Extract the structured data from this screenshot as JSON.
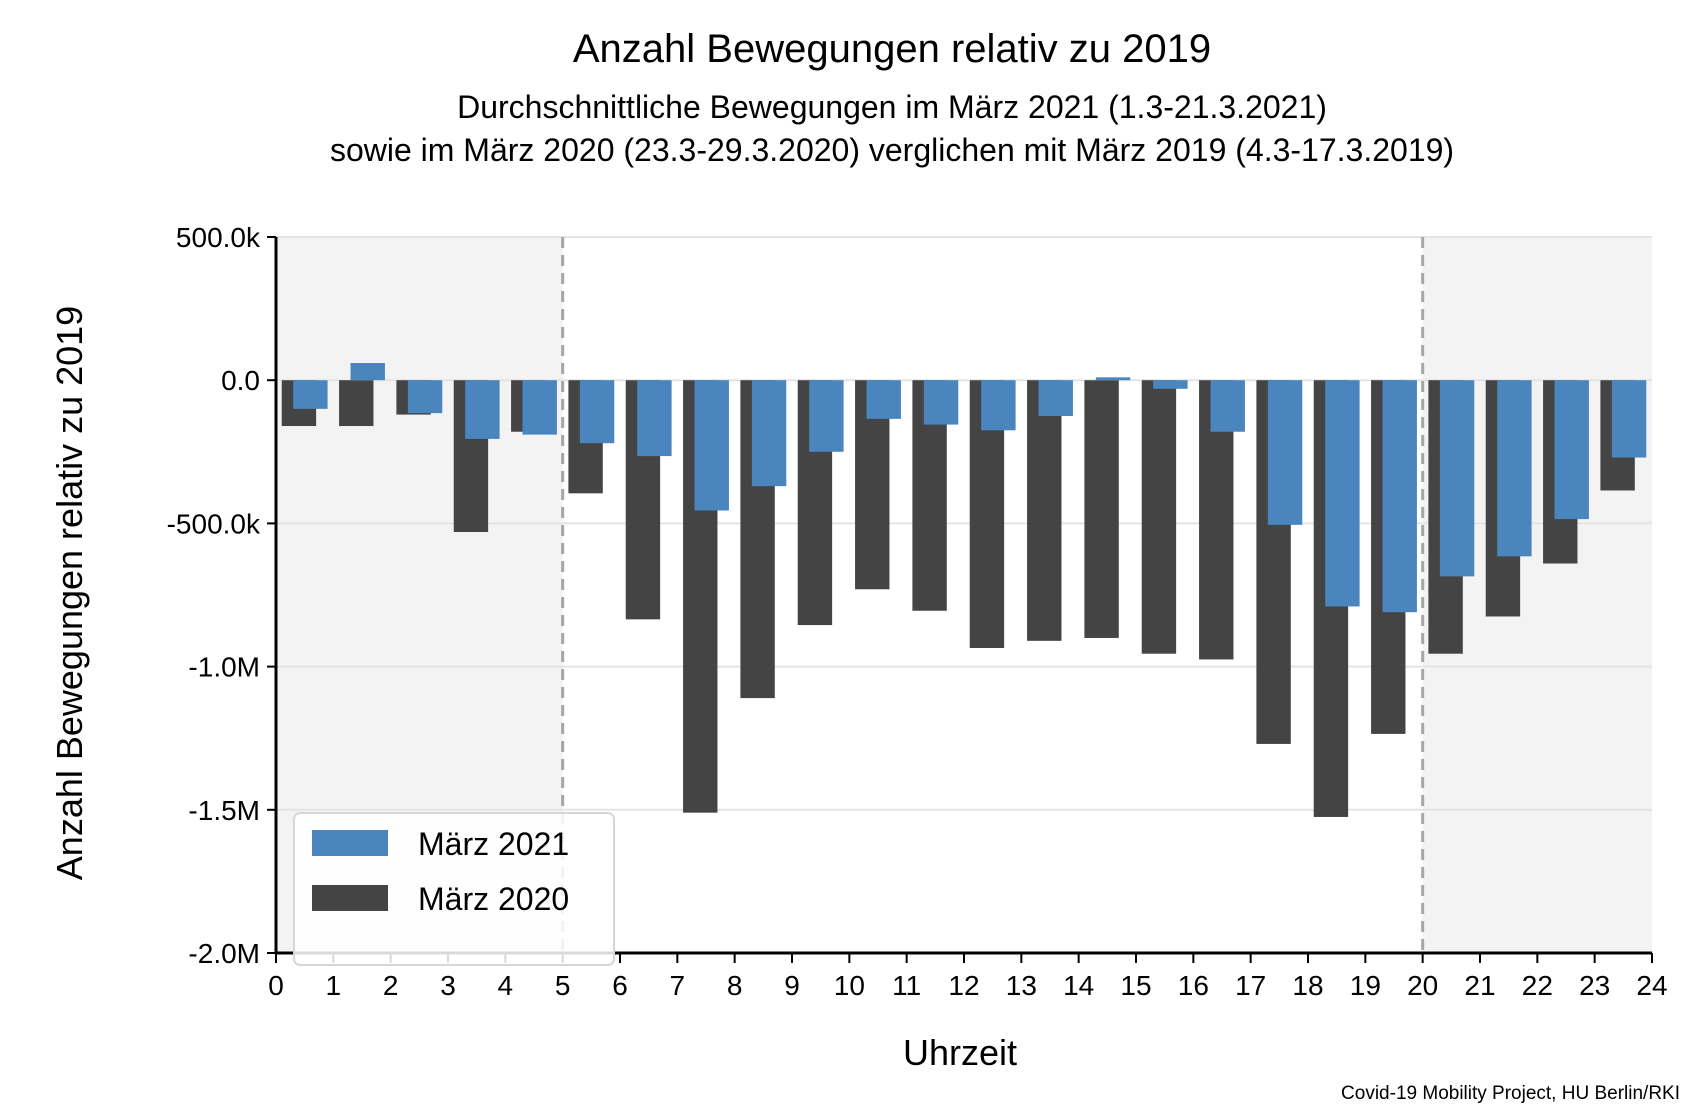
{
  "chart_data": {
    "type": "bar",
    "title": "Anzahl Bewegungen relativ zu 2019",
    "subtitle_lines": [
      "Durchschnittliche Bewegungen im März 2021 (1.3-21.3.2021)",
      "sowie im März 2020 (23.3-29.3.2020) verglichen mit März 2019 (4.3-17.3.2019)"
    ],
    "xlabel": "Uhrzeit",
    "ylabel": "Anzahl Bewegungen relativ zu 2019",
    "source": "Covid-19 Mobility Project, HU Berlin/RKI",
    "x_ticks": [
      "0",
      "1",
      "2",
      "3",
      "4",
      "5",
      "6",
      "7",
      "8",
      "9",
      "10",
      "11",
      "12",
      "13",
      "14",
      "15",
      "16",
      "17",
      "18",
      "19",
      "20",
      "21",
      "22",
      "23",
      "24"
    ],
    "xlim": [
      0,
      24
    ],
    "ylim": [
      -2000000,
      500000
    ],
    "y_ticks": [
      {
        "value": 500000,
        "label": "500.0k"
      },
      {
        "value": 0,
        "label": "0.0"
      },
      {
        "value": -500000,
        "label": "-500.0k"
      },
      {
        "value": -1000000,
        "label": "-1.0M"
      },
      {
        "value": -1500000,
        "label": "-1.5M"
      },
      {
        "value": -2000000,
        "label": "-2.0M"
      }
    ],
    "grid": "horizontal",
    "shaded_ranges": [
      [
        0,
        5
      ],
      [
        20,
        24
      ]
    ],
    "vlines": [
      5,
      20
    ],
    "hours": [
      0,
      1,
      2,
      3,
      4,
      5,
      6,
      7,
      8,
      9,
      10,
      11,
      12,
      13,
      14,
      15,
      16,
      17,
      18,
      19,
      20,
      21,
      22,
      23
    ],
    "series": [
      {
        "name": "März 2020",
        "color": "#444444",
        "values": [
          -160000,
          -160000,
          -120000,
          -530000,
          -180000,
          -395000,
          -835000,
          -1510000,
          -1110000,
          -855000,
          -730000,
          -805000,
          -935000,
          -910000,
          -900000,
          -955000,
          -975000,
          -1270000,
          -1525000,
          -1235000,
          -955000,
          -825000,
          -640000,
          -385000
        ]
      },
      {
        "name": "März 2021",
        "color": "#4a86bd",
        "values": [
          -100000,
          60000,
          -115000,
          -205000,
          -190000,
          -220000,
          -265000,
          -455000,
          -370000,
          -250000,
          -135000,
          -155000,
          -175000,
          -125000,
          10000,
          -30000,
          -180000,
          -505000,
          -790000,
          -810000,
          -685000,
          -615000,
          -485000,
          -270000
        ]
      }
    ],
    "legend": {
      "position": "lower-left",
      "entries": [
        "März 2021",
        "März 2020"
      ]
    }
  },
  "colors": {
    "shade": "#f3f3f3",
    "grid": "#e4e4e4",
    "vline": "#a6a6a6",
    "axis": "#000000"
  }
}
